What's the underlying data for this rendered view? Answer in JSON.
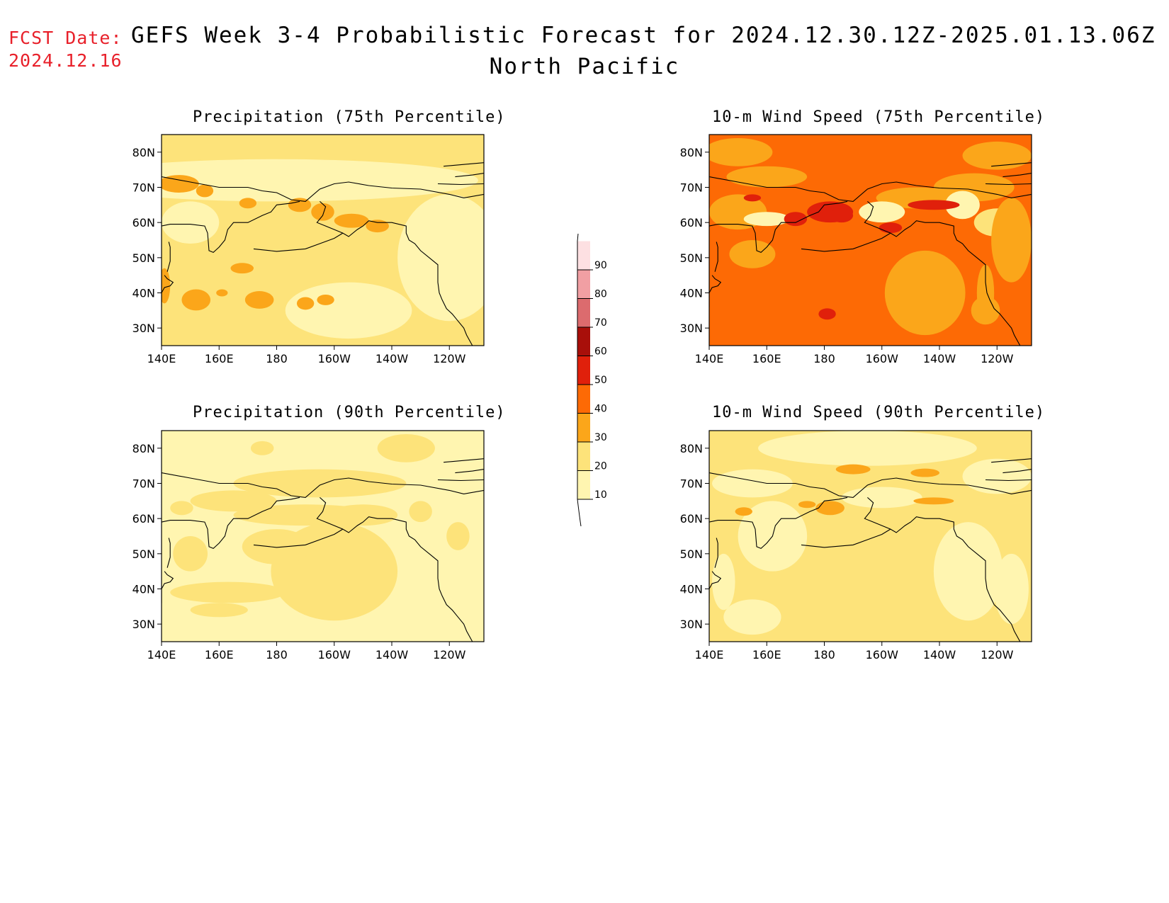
{
  "header": {
    "fcst_label": "FCST Date:",
    "fcst_date": "2024.12.16",
    "title": "GEFS Week 3-4 Probabilistic Forecast for 2024.12.30.12Z-2025.01.13.06Z",
    "subtitle": "North Pacific"
  },
  "colors": {
    "c10": "#fff5b0",
    "c20": "#fde37a",
    "c30": "#fba61a",
    "c40": "#fd6a05",
    "c50": "#e0200b",
    "c60": "#a80f0a",
    "c70": "#dc6b6e",
    "c80": "#f19fa3",
    "c90": "#fde0e2"
  },
  "colorbar": {
    "labels": [
      "10",
      "20",
      "30",
      "40",
      "50",
      "60",
      "70",
      "80",
      "90"
    ]
  },
  "panels": [
    {
      "title": "Precipitation (75th Percentile)",
      "lat_labels": [
        "80N",
        "70N",
        "60N",
        "50N",
        "40N",
        "30N"
      ],
      "lon_labels": [
        "140E",
        "160E",
        "180",
        "160W",
        "140W",
        "120W"
      ],
      "dominant_category": "20"
    },
    {
      "title": "10-m Wind Speed (75th Percentile)",
      "lat_labels": [
        "80N",
        "70N",
        "60N",
        "50N",
        "40N",
        "30N"
      ],
      "lon_labels": [
        "140E",
        "160E",
        "180",
        "160W",
        "140W",
        "120W"
      ],
      "dominant_category": "40"
    },
    {
      "title": "Precipitation (90th Percentile)",
      "lat_labels": [
        "80N",
        "70N",
        "60N",
        "50N",
        "40N",
        "30N"
      ],
      "lon_labels": [
        "140E",
        "160E",
        "180",
        "160W",
        "140W",
        "120W"
      ],
      "dominant_category": "10"
    },
    {
      "title": "10-m Wind Speed (90th Percentile)",
      "lat_labels": [
        "80N",
        "70N",
        "60N",
        "50N",
        "40N",
        "30N"
      ],
      "lon_labels": [
        "140E",
        "160E",
        "180",
        "160W",
        "140W",
        "120W"
      ],
      "dominant_category": "20"
    }
  ]
}
